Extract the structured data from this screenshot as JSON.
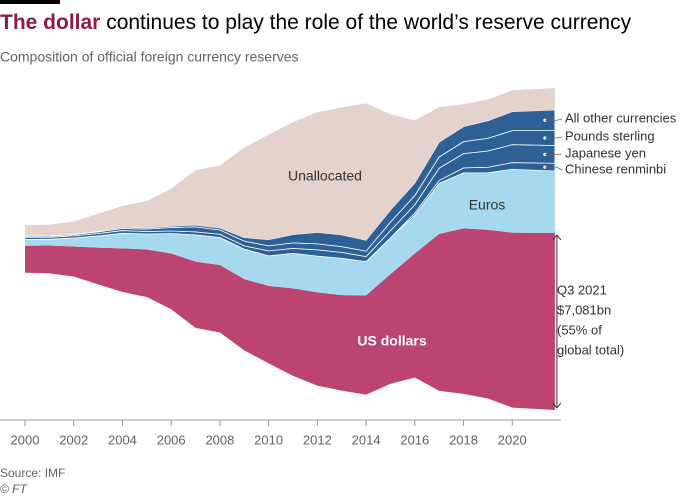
{
  "chart_data": {
    "type": "streamgraph",
    "title_highlight": "The dollar",
    "title": "continues to play the role of the world’s reserve currency",
    "subtitle": "Composition of official foreign currency reserves",
    "source": "Source: IMF",
    "credit": "© FT",
    "annotation": [
      "Q3 2021",
      "$7,081bn",
      "(55% of",
      "global total)"
    ],
    "x": [
      2000,
      2001,
      2002,
      2003,
      2004,
      2005,
      2006,
      2007,
      2008,
      2009,
      2010,
      2011,
      2012,
      2013,
      2014,
      2015,
      2016,
      2017,
      2018,
      2019,
      2020,
      2021.75
    ],
    "xlim": [
      2000,
      2022
    ],
    "xticks": [
      2000,
      2002,
      2004,
      2006,
      2008,
      2010,
      2012,
      2014,
      2016,
      2018,
      2020
    ],
    "series": [
      {
        "name": "US dollars",
        "color": "#bc4470",
        "values": [
          1080,
          1120,
          1200,
          1470,
          1750,
          1900,
          2230,
          2650,
          2700,
          2850,
          3100,
          3500,
          3730,
          3820,
          3970,
          4390,
          4960,
          6280,
          6620,
          6750,
          7000,
          7081
        ]
      },
      {
        "name": "Euros",
        "color": "#a6d9ee",
        "values": [
          250,
          250,
          340,
          470,
          600,
          620,
          800,
          1070,
          1100,
          1200,
          1200,
          1400,
          1450,
          1470,
          1350,
          1450,
          1530,
          2020,
          2220,
          2280,
          2530,
          2480
        ]
      },
      {
        "name": "Chinese renminbi",
        "color": "#2d6196",
        "values": [
          0,
          0,
          0,
          0,
          0,
          0,
          0,
          0,
          0,
          0,
          0,
          0,
          0,
          0,
          0,
          0,
          90,
          120,
          200,
          220,
          270,
          310
        ]
      },
      {
        "name": "Japanese yen",
        "color": "#2d6196",
        "values": [
          90,
          80,
          85,
          95,
          110,
          100,
          100,
          120,
          130,
          130,
          200,
          200,
          250,
          240,
          200,
          290,
          330,
          490,
          570,
          650,
          720,
          710
        ]
      },
      {
        "name": "Pounds sterling",
        "color": "#2d6196",
        "values": [
          42,
          45,
          50,
          65,
          85,
          95,
          140,
          200,
          170,
          190,
          200,
          220,
          240,
          230,
          220,
          340,
          370,
          450,
          480,
          510,
          560,
          600
        ]
      },
      {
        "name": "All other currencies",
        "color": "#2d6196",
        "values": [
          25,
          20,
          25,
          30,
          50,
          45,
          50,
          70,
          80,
          140,
          250,
          330,
          460,
          470,
          440,
          480,
          500,
          590,
          600,
          700,
          760,
          820
        ]
      },
      {
        "name": "Unallocated",
        "color": "#e4d3cd",
        "values": [
          410,
          440,
          500,
          700,
          850,
          1080,
          1500,
          2200,
          2500,
          3600,
          4200,
          4500,
          4800,
          5100,
          5470,
          3840,
          2500,
          1400,
          900,
          850,
          850,
          880
        ]
      }
    ]
  }
}
